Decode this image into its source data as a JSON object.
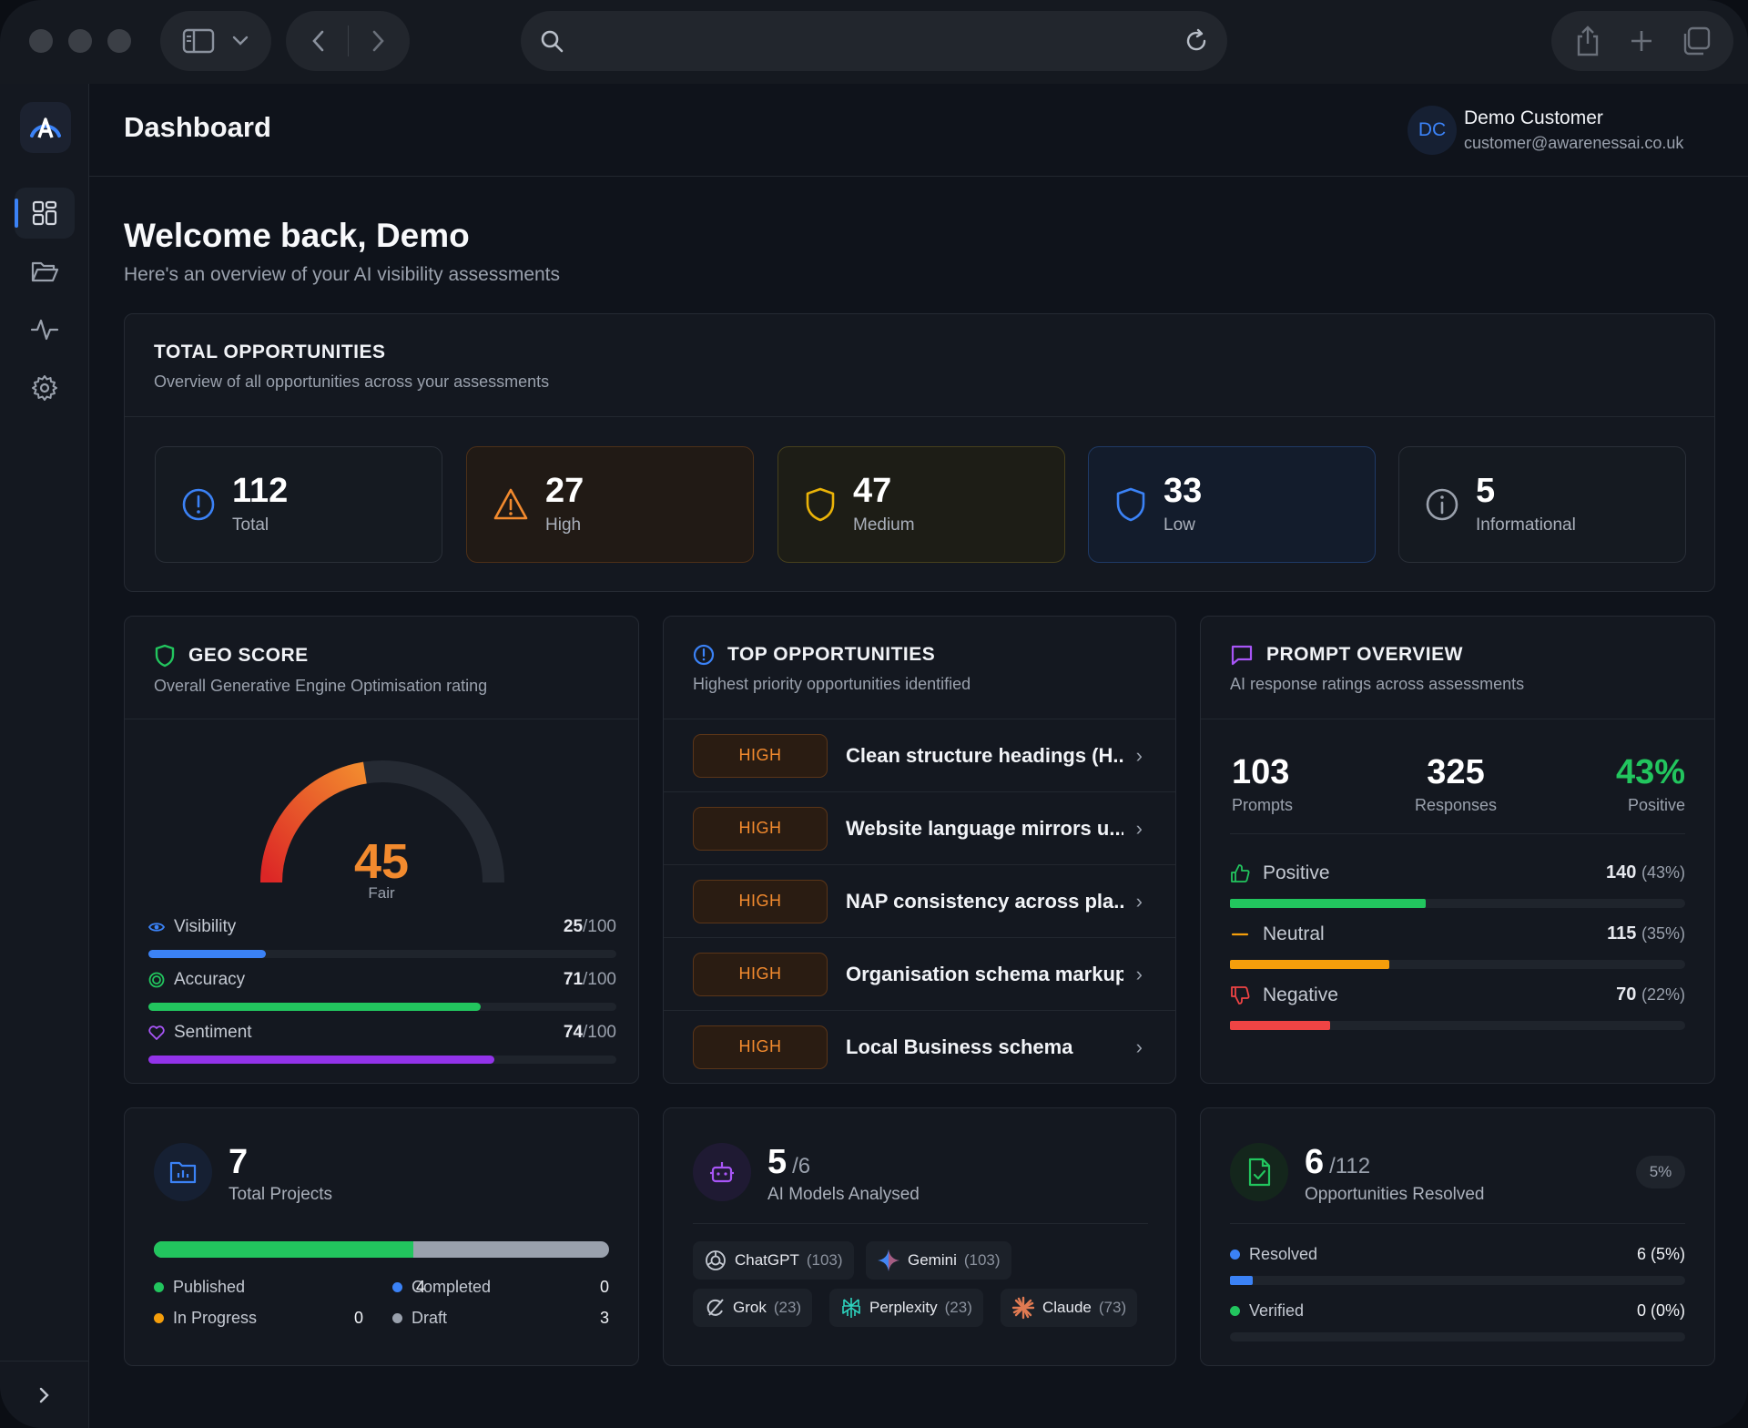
{
  "header": {
    "title": "Dashboard",
    "user_initials": "DC",
    "user_name": "Demo Customer",
    "user_email": "customer@awarenessai.co.uk"
  },
  "welcome": {
    "title": "Welcome back, Demo",
    "subtitle": "Here's an overview of your AI visibility assessments"
  },
  "total_opportunities": {
    "title": "TOTAL OPPORTUNITIES",
    "subtitle": "Overview of all opportunities across your assessments",
    "stats": [
      {
        "value": "112",
        "label": "Total",
        "color": "#3b82f6"
      },
      {
        "value": "27",
        "label": "High",
        "color": "#f28a2e"
      },
      {
        "value": "47",
        "label": "Medium",
        "color": "#eab308"
      },
      {
        "value": "33",
        "label": "Low",
        "color": "#3b82f6"
      },
      {
        "value": "5",
        "label": "Informational",
        "color": "#9aa1ad"
      }
    ]
  },
  "geo_score": {
    "title": "GEO SCORE",
    "subtitle": "Overall Generative Engine Optimisation rating",
    "score": "45",
    "score_max": 100,
    "rating": "Fair",
    "metrics": [
      {
        "label": "Visibility",
        "value": "25",
        "max": "/100",
        "fraction": 0.25,
        "color": "#3b82f6"
      },
      {
        "label": "Accuracy",
        "value": "71",
        "max": "/100",
        "fraction": 0.71,
        "color": "#22c55e"
      },
      {
        "label": "Sentiment",
        "value": "74",
        "max": "/100",
        "fraction": 0.74,
        "color": "#9333ea"
      }
    ]
  },
  "top_opportunities": {
    "title": "TOP OPPORTUNITIES",
    "subtitle": "Highest priority opportunities identified",
    "items": [
      {
        "priority": "HIGH",
        "title": "Clean structure headings (H..."
      },
      {
        "priority": "HIGH",
        "title": "Website language mirrors u..."
      },
      {
        "priority": "HIGH",
        "title": "NAP consistency across pla..."
      },
      {
        "priority": "HIGH",
        "title": "Organisation schema markup"
      },
      {
        "priority": "HIGH",
        "title": "Local Business schema"
      }
    ]
  },
  "prompt_overview": {
    "title": "PROMPT OVERVIEW",
    "subtitle": "AI response ratings across assessments",
    "prompts": "103",
    "prompts_label": "Prompts",
    "responses": "325",
    "responses_label": "Responses",
    "positive_pct": "43%",
    "positive_label": "Positive",
    "ratings": [
      {
        "label": "Positive",
        "count": "140",
        "pct": "(43%)",
        "fraction": 0.43,
        "color": "#22c55e"
      },
      {
        "label": "Neutral",
        "count": "115",
        "pct": "(35%)",
        "fraction": 0.35,
        "color": "#f59e0b"
      },
      {
        "label": "Negative",
        "count": "70",
        "pct": "(22%)",
        "fraction": 0.22,
        "color": "#ef4444"
      }
    ]
  },
  "projects": {
    "value": "7",
    "label": "Total Projects",
    "published_fraction": 0.57,
    "legend": [
      {
        "label": "Published",
        "value": "4",
        "color": "#22c55e"
      },
      {
        "label": "Completed",
        "value": "0",
        "color": "#3b82f6"
      },
      {
        "label": "In Progress",
        "value": "0",
        "color": "#f59e0b"
      },
      {
        "label": "Draft",
        "value": "3",
        "color": "#9aa1ad"
      }
    ]
  },
  "models": {
    "value": "5",
    "total": "/6",
    "label": "AI Models Analysed",
    "chips": [
      {
        "name": "ChatGPT",
        "count": "(103)"
      },
      {
        "name": "Gemini",
        "count": "(103)"
      },
      {
        "name": "Grok",
        "count": "(23)"
      },
      {
        "name": "Perplexity",
        "count": "(23)"
      },
      {
        "name": "Claude",
        "count": "(73)"
      }
    ]
  },
  "resolved": {
    "value": "6",
    "total": "/112",
    "label": "Opportunities Resolved",
    "badge": "5%",
    "rows": [
      {
        "label": "Resolved",
        "value": "6 (5%)",
        "fraction": 0.05,
        "color": "#3b82f6"
      },
      {
        "label": "Verified",
        "value": "0 (0%)",
        "fraction": 0,
        "color": "#22c55e"
      }
    ]
  }
}
